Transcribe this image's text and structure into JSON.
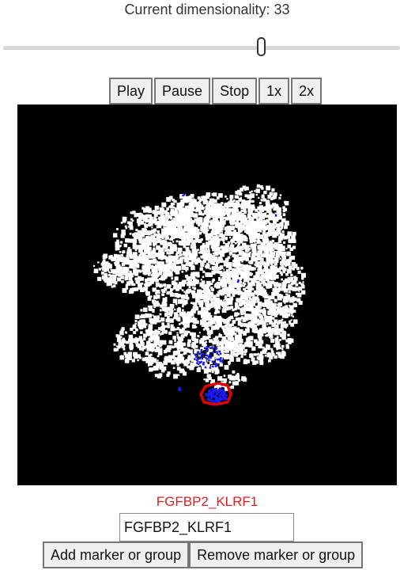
{
  "dimensionality": {
    "label": "Current dimensionality: 33",
    "value": 33,
    "slider_min": 1,
    "slider_max": 50
  },
  "playback": {
    "play_label": "Play",
    "pause_label": "Pause",
    "stop_label": "Stop",
    "speed1_label": "1x",
    "speed2_label": "2x"
  },
  "plot": {
    "background_color": "#000000",
    "cell_color": "#ffffff",
    "marker_color": "#1a1aff",
    "selection_color": "#e00000"
  },
  "marker": {
    "selected_name": "FGFBP2_KLRF1",
    "selected_color": "#e02020",
    "input_value": "FGFBP2_KLRF1",
    "add_label": "Add marker or group",
    "remove_label": "Remove marker or group"
  }
}
